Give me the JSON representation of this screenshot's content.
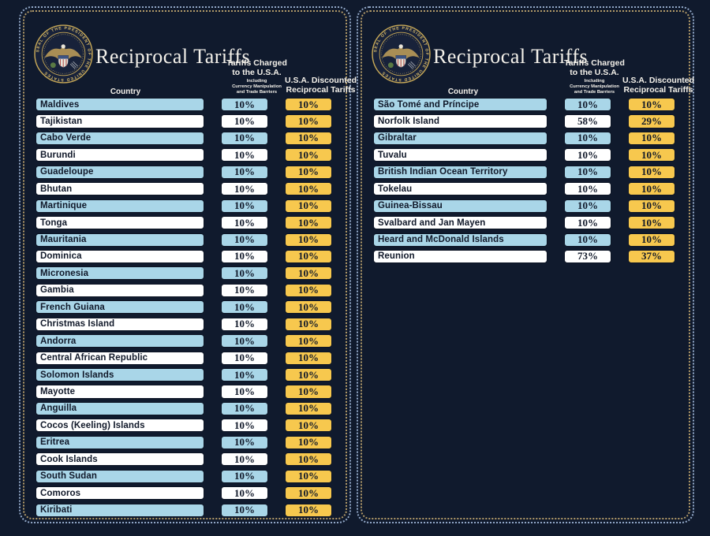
{
  "colors": {
    "background": "#101a2d",
    "row_blue": "#a9d6e8",
    "row_white": "#ffffff",
    "accent_yellow": "#f7c84e",
    "text_dark": "#101829",
    "text_light": "#f4f1ea",
    "border_blue_dotted": "#93a9c9",
    "border_gold_dotted": "#b29a68"
  },
  "seal": {
    "icon": "presidential-seal-icon",
    "ring_text": "SEAL OF THE PRESIDENT OF THE UNITED STATES"
  },
  "panels": [
    {
      "title": "Reciprocal Tariffs",
      "columns": {
        "country": "Country",
        "charged_line1": "Tariffs Charged",
        "charged_line2": "to the U.S.A.",
        "charged_sub1": "Including",
        "charged_sub2": "Currency Manipulation",
        "charged_sub3": "and Trade Barriers",
        "disc_line1": "U.S.A. Discounted",
        "disc_line2": "Reciprocal Tariffs"
      },
      "rows": [
        {
          "country": "Maldives",
          "charged": "10%",
          "discounted": "10%"
        },
        {
          "country": "Tajikistan",
          "charged": "10%",
          "discounted": "10%"
        },
        {
          "country": "Cabo Verde",
          "charged": "10%",
          "discounted": "10%"
        },
        {
          "country": "Burundi",
          "charged": "10%",
          "discounted": "10%"
        },
        {
          "country": "Guadeloupe",
          "charged": "10%",
          "discounted": "10%"
        },
        {
          "country": "Bhutan",
          "charged": "10%",
          "discounted": "10%"
        },
        {
          "country": "Martinique",
          "charged": "10%",
          "discounted": "10%"
        },
        {
          "country": "Tonga",
          "charged": "10%",
          "discounted": "10%"
        },
        {
          "country": "Mauritania",
          "charged": "10%",
          "discounted": "10%"
        },
        {
          "country": "Dominica",
          "charged": "10%",
          "discounted": "10%"
        },
        {
          "country": "Micronesia",
          "charged": "10%",
          "discounted": "10%"
        },
        {
          "country": "Gambia",
          "charged": "10%",
          "discounted": "10%"
        },
        {
          "country": "French Guiana",
          "charged": "10%",
          "discounted": "10%"
        },
        {
          "country": "Christmas Island",
          "charged": "10%",
          "discounted": "10%"
        },
        {
          "country": "Andorra",
          "charged": "10%",
          "discounted": "10%"
        },
        {
          "country": "Central African Republic",
          "charged": "10%",
          "discounted": "10%"
        },
        {
          "country": "Solomon Islands",
          "charged": "10%",
          "discounted": "10%"
        },
        {
          "country": "Mayotte",
          "charged": "10%",
          "discounted": "10%"
        },
        {
          "country": "Anguilla",
          "charged": "10%",
          "discounted": "10%"
        },
        {
          "country": "Cocos (Keeling) Islands",
          "charged": "10%",
          "discounted": "10%"
        },
        {
          "country": "Eritrea",
          "charged": "10%",
          "discounted": "10%"
        },
        {
          "country": "Cook Islands",
          "charged": "10%",
          "discounted": "10%"
        },
        {
          "country": "South Sudan",
          "charged": "10%",
          "discounted": "10%"
        },
        {
          "country": "Comoros",
          "charged": "10%",
          "discounted": "10%"
        },
        {
          "country": "Kiribati",
          "charged": "10%",
          "discounted": "10%"
        }
      ]
    },
    {
      "title": "Reciprocal Tariffs",
      "columns": {
        "country": "Country",
        "charged_line1": "Tariffs Charged",
        "charged_line2": "to the U.S.A.",
        "charged_sub1": "Including",
        "charged_sub2": "Currency Manipulation",
        "charged_sub3": "and Trade Barriers",
        "disc_line1": "U.S.A. Discounted",
        "disc_line2": "Reciprocal Tariffs"
      },
      "rows": [
        {
          "country": "São Tomé and Príncipe",
          "charged": "10%",
          "discounted": "10%"
        },
        {
          "country": "Norfolk Island",
          "charged": "58%",
          "discounted": "29%"
        },
        {
          "country": "Gibraltar",
          "charged": "10%",
          "discounted": "10%"
        },
        {
          "country": "Tuvalu",
          "charged": "10%",
          "discounted": "10%"
        },
        {
          "country": "British Indian Ocean Territory",
          "charged": "10%",
          "discounted": "10%"
        },
        {
          "country": "Tokelau",
          "charged": "10%",
          "discounted": "10%"
        },
        {
          "country": "Guinea-Bissau",
          "charged": "10%",
          "discounted": "10%"
        },
        {
          "country": "Svalbard and Jan Mayen",
          "charged": "10%",
          "discounted": "10%"
        },
        {
          "country": "Heard and McDonald Islands",
          "charged": "10%",
          "discounted": "10%"
        },
        {
          "country": "Reunion",
          "charged": "73%",
          "discounted": "37%"
        }
      ]
    }
  ],
  "chart_data": [
    {
      "type": "table",
      "title": "Reciprocal Tariffs",
      "columns": [
        "Country",
        "Tariffs Charged to the U.S.A. Including Currency Manipulation and Trade Barriers",
        "U.S.A. Discounted Reciprocal Tariffs"
      ],
      "rows": [
        [
          "Maldives",
          "10%",
          "10%"
        ],
        [
          "Tajikistan",
          "10%",
          "10%"
        ],
        [
          "Cabo Verde",
          "10%",
          "10%"
        ],
        [
          "Burundi",
          "10%",
          "10%"
        ],
        [
          "Guadeloupe",
          "10%",
          "10%"
        ],
        [
          "Bhutan",
          "10%",
          "10%"
        ],
        [
          "Martinique",
          "10%",
          "10%"
        ],
        [
          "Tonga",
          "10%",
          "10%"
        ],
        [
          "Mauritania",
          "10%",
          "10%"
        ],
        [
          "Dominica",
          "10%",
          "10%"
        ],
        [
          "Micronesia",
          "10%",
          "10%"
        ],
        [
          "Gambia",
          "10%",
          "10%"
        ],
        [
          "French Guiana",
          "10%",
          "10%"
        ],
        [
          "Christmas Island",
          "10%",
          "10%"
        ],
        [
          "Andorra",
          "10%",
          "10%"
        ],
        [
          "Central African Republic",
          "10%",
          "10%"
        ],
        [
          "Solomon Islands",
          "10%",
          "10%"
        ],
        [
          "Mayotte",
          "10%",
          "10%"
        ],
        [
          "Anguilla",
          "10%",
          "10%"
        ],
        [
          "Cocos (Keeling) Islands",
          "10%",
          "10%"
        ],
        [
          "Eritrea",
          "10%",
          "10%"
        ],
        [
          "Cook Islands",
          "10%",
          "10%"
        ],
        [
          "South Sudan",
          "10%",
          "10%"
        ],
        [
          "Comoros",
          "10%",
          "10%"
        ],
        [
          "Kiribati",
          "10%",
          "10%"
        ]
      ]
    },
    {
      "type": "table",
      "title": "Reciprocal Tariffs",
      "columns": [
        "Country",
        "Tariffs Charged to the U.S.A. Including Currency Manipulation and Trade Barriers",
        "U.S.A. Discounted Reciprocal Tariffs"
      ],
      "rows": [
        [
          "São Tomé and Príncipe",
          "10%",
          "10%"
        ],
        [
          "Norfolk Island",
          "58%",
          "29%"
        ],
        [
          "Gibraltar",
          "10%",
          "10%"
        ],
        [
          "Tuvalu",
          "10%",
          "10%"
        ],
        [
          "British Indian Ocean Territory",
          "10%",
          "10%"
        ],
        [
          "Tokelau",
          "10%",
          "10%"
        ],
        [
          "Guinea-Bissau",
          "10%",
          "10%"
        ],
        [
          "Svalbard and Jan Mayen",
          "10%",
          "10%"
        ],
        [
          "Heard and McDonald Islands",
          "10%",
          "10%"
        ],
        [
          "Reunion",
          "73%",
          "37%"
        ]
      ]
    }
  ]
}
